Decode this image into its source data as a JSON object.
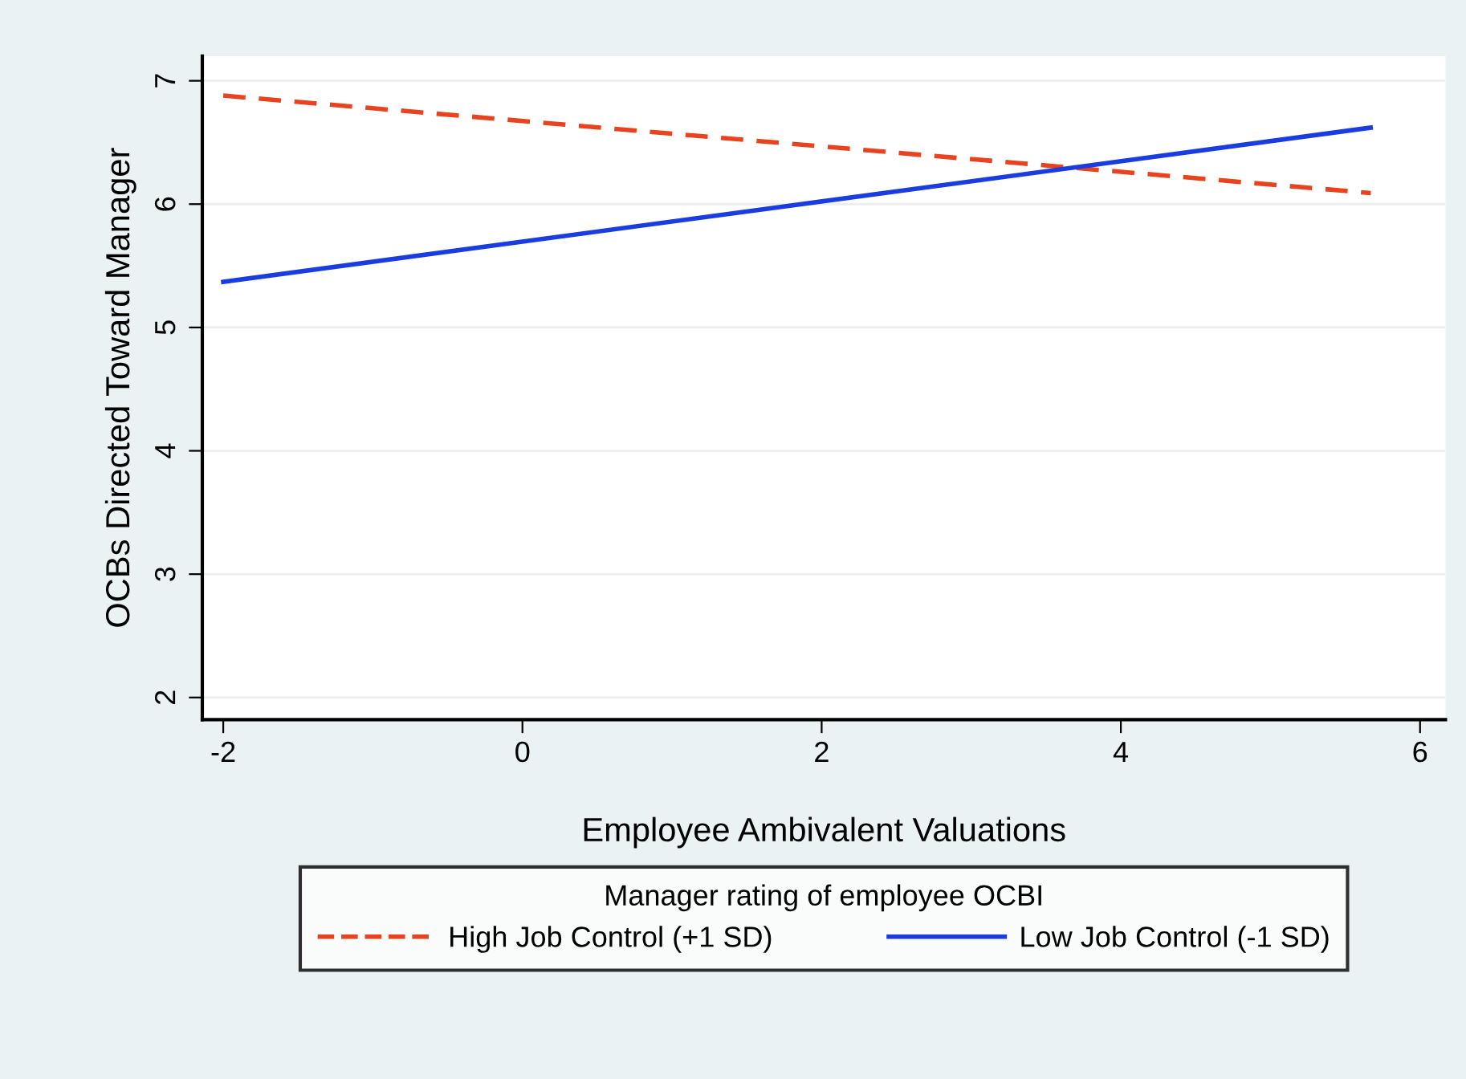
{
  "chart_data": {
    "type": "line",
    "xlabel": "Employee Ambivalent Valuations",
    "ylabel": "OCBs Directed Toward Manager",
    "legend_title": "Manager rating of employee OCBI",
    "legend": "bottom",
    "grid": "y",
    "marker": "none",
    "xlim": [
      -2.14,
      6.17
    ],
    "ylim": [
      1.82,
      7.2
    ],
    "xticks": [
      -2,
      0,
      2,
      4,
      6
    ],
    "yticks": [
      2,
      3,
      4,
      5,
      6,
      7
    ],
    "x": [
      -2,
      5.67
    ],
    "series": [
      {
        "name": "High Job Control (+1 SD)",
        "color": "#e8431e",
        "line_style": "dashed",
        "values": [
          6.88,
          6.09
        ]
      },
      {
        "name": "Low Job Control (-1 SD)",
        "color": "#1a3de0",
        "line_style": "solid",
        "values": [
          5.37,
          6.62
        ]
      }
    ]
  }
}
